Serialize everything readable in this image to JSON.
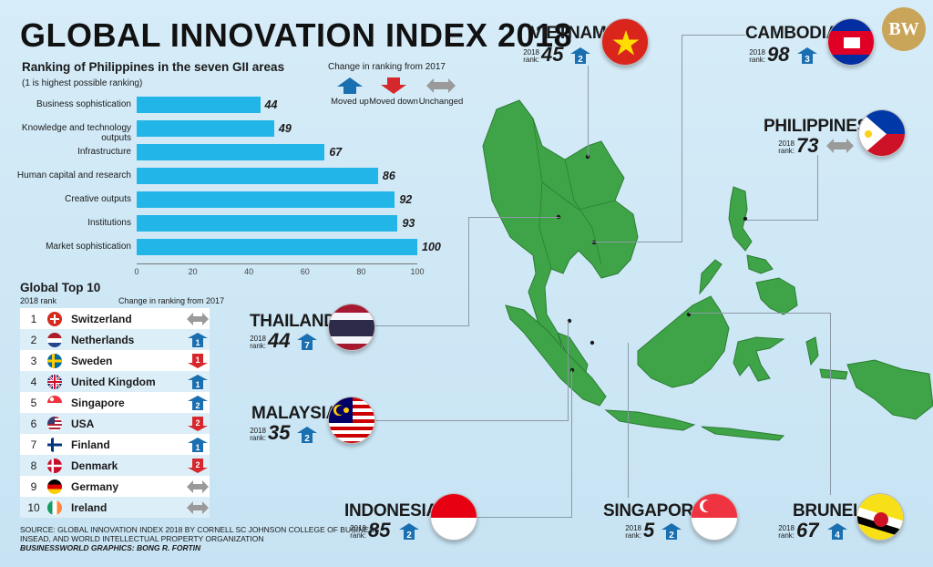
{
  "title": "GLOBAL INNOVATION INDEX 2018",
  "subtitle": "Ranking of Philippines in the seven GII areas",
  "subnote": "(1 is highest possible ranking)",
  "legend": {
    "title": "Change in ranking from 2017",
    "moved_up": "Moved up",
    "moved_down": "Moved down",
    "unchanged": "Unchanged",
    "colors": {
      "up": "#1a6fb0",
      "down": "#d6272c",
      "same": "#9a9a9a"
    }
  },
  "chart_data": {
    "type": "bar",
    "orientation": "horizontal",
    "categories": [
      "Business sophistication",
      "Knowledge and technology outputs",
      "Infrastructure",
      "Human capital and research",
      "Creative outputs",
      "Institutions",
      "Market sophistication"
    ],
    "values": [
      44,
      49,
      67,
      86,
      92,
      93,
      100
    ],
    "xlim": [
      0,
      100
    ],
    "xticks": [
      "0",
      "20",
      "40",
      "60",
      "80",
      "100"
    ],
    "bar_color": "#22b5e8"
  },
  "top10": {
    "title": "Global Top 10",
    "rank_header": "2018 rank",
    "change_header": "Change in ranking from 2017",
    "rows": [
      {
        "rank": "1",
        "country": "Switzerland",
        "flag": "switzerland",
        "change": "same",
        "delta": ""
      },
      {
        "rank": "2",
        "country": "Netherlands",
        "flag": "netherlands",
        "change": "up",
        "delta": "1"
      },
      {
        "rank": "3",
        "country": "Sweden",
        "flag": "sweden",
        "change": "down",
        "delta": "1"
      },
      {
        "rank": "4",
        "country": "United Kingdom",
        "flag": "uk",
        "change": "up",
        "delta": "1"
      },
      {
        "rank": "5",
        "country": "Singapore",
        "flag": "singapore",
        "change": "up",
        "delta": "2"
      },
      {
        "rank": "6",
        "country": "USA",
        "flag": "usa",
        "change": "down",
        "delta": "2"
      },
      {
        "rank": "7",
        "country": "Finland",
        "flag": "finland",
        "change": "up",
        "delta": "1"
      },
      {
        "rank": "8",
        "country": "Denmark",
        "flag": "denmark",
        "change": "down",
        "delta": "2"
      },
      {
        "rank": "9",
        "country": "Germany",
        "flag": "germany",
        "change": "same",
        "delta": ""
      },
      {
        "rank": "10",
        "country": "Ireland",
        "flag": "ireland",
        "change": "same",
        "delta": ""
      }
    ]
  },
  "source": {
    "line1": "SOURCE: GLOBAL INNOVATION INDEX 2018 by CORNELL SC JOHNSON COLLEGE OF BUSINESS,",
    "line2": "INSEAD, and WORLD INTELLECTUAL PROPERTY ORGANIZATION",
    "line3": "BUSINESSWORLD GRAPHICS: BONG R. FORTIN"
  },
  "rank_year": "2018",
  "rank_word": "rank:",
  "countries": {
    "vietnam": {
      "name": "VIETNAM",
      "rank": "45",
      "change": "up",
      "delta": "2"
    },
    "cambodia": {
      "name": "CAMBODIA",
      "rank": "98",
      "change": "up",
      "delta": "3"
    },
    "philippines": {
      "name": "PHILIPPINES",
      "rank": "73",
      "change": "same",
      "delta": ""
    },
    "thailand": {
      "name": "THAILAND",
      "rank": "44",
      "change": "up",
      "delta": "7"
    },
    "malaysia": {
      "name": "MALAYSIA",
      "rank": "35",
      "change": "up",
      "delta": "2"
    },
    "indonesia": {
      "name": "INDONESIA",
      "rank": "85",
      "change": "up",
      "delta": "2"
    },
    "singapore": {
      "name": "SINGAPORE",
      "rank": "5",
      "change": "up",
      "delta": "2"
    },
    "brunei": {
      "name": "BRUNEI",
      "rank": "67",
      "change": "up",
      "delta": "4"
    }
  },
  "logo": "BW",
  "map_color": "#3fa447"
}
